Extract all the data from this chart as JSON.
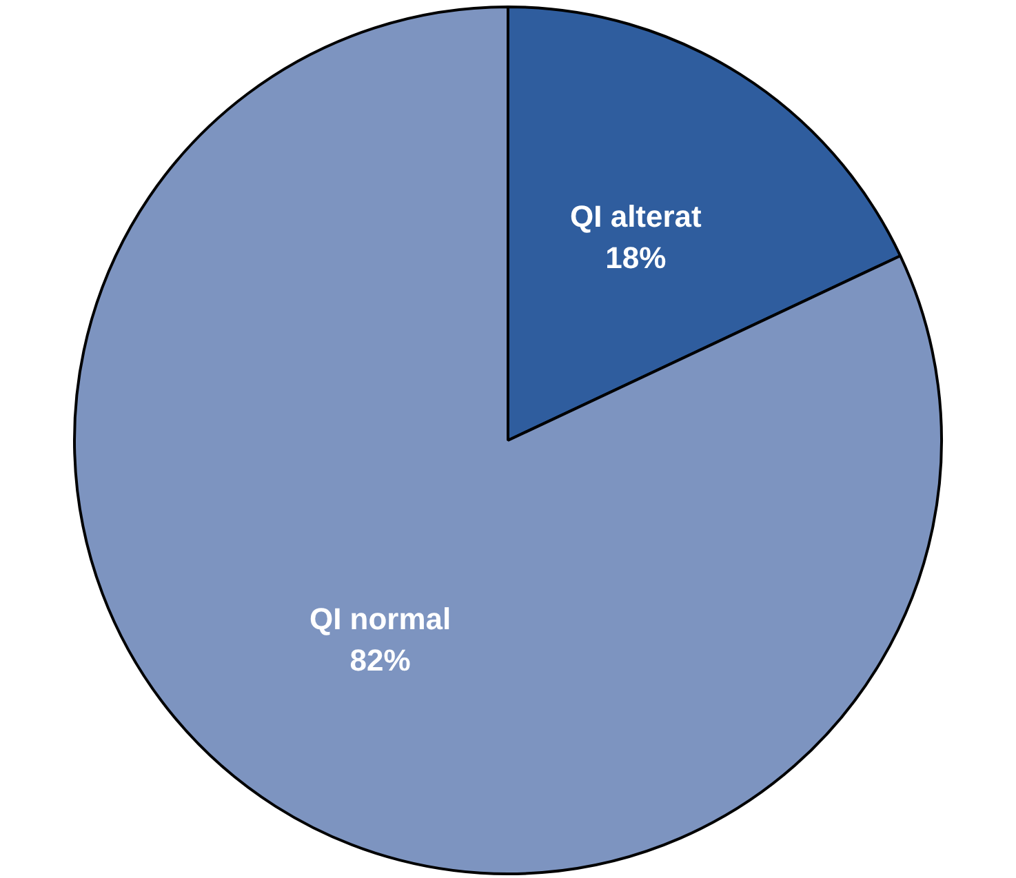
{
  "chart_data": {
    "type": "pie",
    "categories": [
      "QI alterat",
      "QI normal"
    ],
    "values": [
      18,
      82
    ],
    "colors": [
      "#2f5d9e",
      "#7d94c0"
    ],
    "value_labels": [
      "18%",
      "82%"
    ],
    "legend": false
  }
}
